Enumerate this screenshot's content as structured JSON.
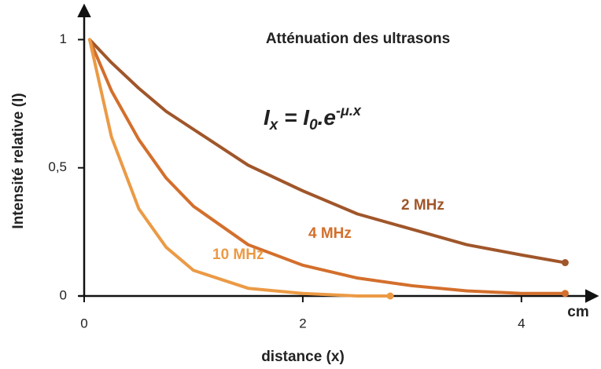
{
  "chart_data": {
    "type": "line",
    "title": "Atténuation des ultrasons",
    "formula": [
      "I",
      "x",
      " = I",
      "0",
      ".e",
      "-μ.x"
    ],
    "xlabel": "distance (x)",
    "xunit": "cm",
    "ylabel": "Intensité relative (I)",
    "xlim": [
      0,
      4.62
    ],
    "ylim": [
      0,
      1.13
    ],
    "xticks": [
      0,
      2,
      4
    ],
    "yticks": [
      0,
      {
        "value": 0.5,
        "label": "0,5"
      },
      1
    ],
    "series": [
      {
        "name": "2 MHz",
        "color": "#a0562a",
        "x": [
          0.05,
          0.25,
          0.5,
          0.75,
          1,
          1.5,
          2,
          2.5,
          3,
          3.5,
          4,
          4.4
        ],
        "values": [
          1,
          0.91,
          0.81,
          0.72,
          0.65,
          0.51,
          0.41,
          0.32,
          0.26,
          0.2,
          0.16,
          0.13
        ]
      },
      {
        "name": "4 MHz",
        "color": "#d36f2c",
        "x": [
          0.05,
          0.25,
          0.5,
          0.75,
          1,
          1.5,
          2,
          2.5,
          3,
          3.5,
          4,
          4.4
        ],
        "values": [
          1,
          0.8,
          0.61,
          0.46,
          0.35,
          0.2,
          0.12,
          0.07,
          0.04,
          0.02,
          0.01,
          0.01
        ]
      },
      {
        "name": "10 MHz",
        "color": "#eb9a45",
        "x": [
          0.05,
          0.25,
          0.5,
          0.75,
          1,
          1.5,
          2,
          2.5,
          2.8
        ],
        "values": [
          1,
          0.62,
          0.34,
          0.19,
          0.1,
          0.03,
          0.01,
          0,
          0
        ]
      }
    ]
  }
}
